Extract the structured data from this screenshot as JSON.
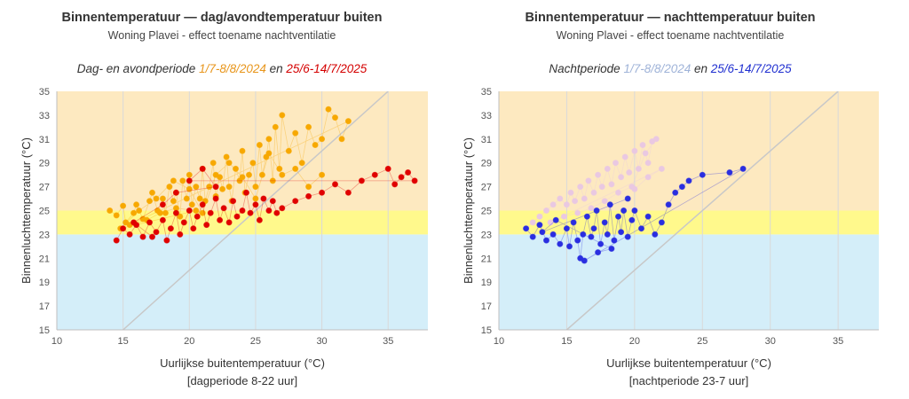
{
  "chart_data": [
    {
      "type": "scatter",
      "title": "Binnentemperatuur — dag/avondtemperatuur buiten",
      "subtitle": "Woning Plavei - effect toename nachtventilatie",
      "period_label": {
        "prefix": "Dag- en avondperiode ",
        "first": "1/7-8/8/2024",
        "joiner": " en ",
        "second": "25/6-14/7/2025"
      },
      "xlabel": "Uurlijkse buitentemperatuur (°C)",
      "xlabel2": "[dagperiode 8-22 uur]",
      "ylabel": "Binnenluchttemperatuur (°C)",
      "xlim": [
        10,
        38
      ],
      "ylim": [
        15,
        35
      ],
      "xticks": [
        "10",
        "15",
        "20",
        "25",
        "30",
        "35"
      ],
      "yticks": [
        "15",
        "17",
        "19",
        "21",
        "23",
        "25",
        "27",
        "29",
        "31",
        "33",
        "35"
      ],
      "bands": [
        {
          "from": 15,
          "to": 23,
          "color": "#d4eef9"
        },
        {
          "from": 23,
          "to": 25,
          "color": "#fff98c"
        },
        {
          "from": 25,
          "to": 35,
          "color": "#fde9c0"
        }
      ],
      "reference_line": {
        "from": [
          15,
          15
        ],
        "to": [
          35,
          35
        ]
      },
      "series": [
        {
          "color": "#f7a800",
          "connected": true,
          "points": [
            [
              14,
              25.0
            ],
            [
              14.5,
              24.6
            ],
            [
              15,
              25.4
            ],
            [
              15.2,
              24.0
            ],
            [
              15.8,
              24.8
            ],
            [
              16,
              25.5
            ],
            [
              16.5,
              24.3
            ],
            [
              17,
              25.8
            ],
            [
              17.2,
              26.5
            ],
            [
              17.6,
              25.0
            ],
            [
              18,
              26.0
            ],
            [
              18.2,
              24.8
            ],
            [
              18.5,
              27.0
            ],
            [
              18.8,
              25.8
            ],
            [
              19,
              26.5
            ],
            [
              19.3,
              24.5
            ],
            [
              19.5,
              27.5
            ],
            [
              19.8,
              26.0
            ],
            [
              20,
              28.0
            ],
            [
              20.2,
              25.5
            ],
            [
              20.5,
              27.0
            ],
            [
              20.8,
              26.0
            ],
            [
              21,
              28.5
            ],
            [
              21.2,
              25.8
            ],
            [
              21.5,
              27.0
            ],
            [
              21.8,
              29.0
            ],
            [
              22,
              26.2
            ],
            [
              22.3,
              27.8
            ],
            [
              22.5,
              26.8
            ],
            [
              22.8,
              29.5
            ],
            [
              23,
              27.0
            ],
            [
              23.2,
              25.8
            ],
            [
              23.5,
              28.5
            ],
            [
              23.8,
              27.5
            ],
            [
              24,
              30.0
            ],
            [
              24.2,
              26.5
            ],
            [
              24.5,
              28.0
            ],
            [
              24.8,
              29.0
            ],
            [
              25,
              27.0
            ],
            [
              25.3,
              30.5
            ],
            [
              25.5,
              28.0
            ],
            [
              25.8,
              29.5
            ],
            [
              26,
              31.0
            ],
            [
              26.3,
              27.5
            ],
            [
              26.5,
              32.0
            ],
            [
              26.8,
              28.5
            ],
            [
              27,
              33.0
            ],
            [
              27.5,
              30.0
            ],
            [
              28,
              31.5
            ],
            [
              28.5,
              29.0
            ],
            [
              29,
              32.0
            ],
            [
              29.5,
              30.5
            ],
            [
              30,
              31.0
            ],
            [
              30.5,
              33.5
            ],
            [
              31,
              32.8
            ],
            [
              31.5,
              31.0
            ],
            [
              32,
              32.5
            ],
            [
              15.5,
              23.8
            ],
            [
              16.8,
              24.2
            ],
            [
              17.8,
              24.8
            ],
            [
              19,
              25.2
            ],
            [
              20.5,
              25.0
            ],
            [
              14.8,
              23.5
            ],
            [
              16.2,
              25.0
            ],
            [
              17.5,
              26.0
            ],
            [
              18.8,
              27.5
            ],
            [
              20,
              26.8
            ],
            [
              21,
              24.8
            ],
            [
              22,
              28.0
            ],
            [
              23,
              29.0
            ],
            [
              24,
              27.8
            ],
            [
              25,
              26.0
            ],
            [
              26,
              29.8
            ],
            [
              27,
              28.0
            ],
            [
              28,
              28.5
            ],
            [
              29,
              27.0
            ],
            [
              30,
              28.0
            ]
          ]
        },
        {
          "color": "#e00000",
          "connected": true,
          "points": [
            [
              14.5,
              22.5
            ],
            [
              15,
              23.5
            ],
            [
              15.5,
              23.0
            ],
            [
              16,
              23.8
            ],
            [
              16.5,
              22.8
            ],
            [
              17,
              24.0
            ],
            [
              17.5,
              23.2
            ],
            [
              18,
              24.2
            ],
            [
              18.3,
              22.5
            ],
            [
              18.6,
              23.5
            ],
            [
              19,
              24.8
            ],
            [
              19.3,
              23.0
            ],
            [
              19.6,
              24.0
            ],
            [
              20,
              25.0
            ],
            [
              20.3,
              23.5
            ],
            [
              20.6,
              24.5
            ],
            [
              21,
              25.5
            ],
            [
              21.3,
              23.8
            ],
            [
              21.6,
              24.8
            ],
            [
              22,
              26.0
            ],
            [
              22.3,
              24.2
            ],
            [
              22.6,
              25.2
            ],
            [
              23,
              24.0
            ],
            [
              23.3,
              25.8
            ],
            [
              23.6,
              24.5
            ],
            [
              24,
              25.0
            ],
            [
              24.3,
              26.5
            ],
            [
              24.6,
              24.8
            ],
            [
              25,
              25.5
            ],
            [
              25.3,
              24.2
            ],
            [
              25.6,
              26.0
            ],
            [
              26,
              25.0
            ],
            [
              26.3,
              25.8
            ],
            [
              26.6,
              24.8
            ],
            [
              27,
              25.2
            ],
            [
              28,
              25.8
            ],
            [
              29,
              26.2
            ],
            [
              30,
              26.5
            ],
            [
              31,
              27.2
            ],
            [
              32,
              26.5
            ],
            [
              33,
              27.5
            ],
            [
              34,
              28.0
            ],
            [
              35,
              28.5
            ],
            [
              35.5,
              27.2
            ],
            [
              36,
              27.8
            ],
            [
              36.5,
              28.2
            ],
            [
              37,
              27.5
            ],
            [
              20,
              27.5
            ],
            [
              21,
              28.5
            ],
            [
              22,
              27.0
            ],
            [
              19,
              26.5
            ],
            [
              18,
              25.5
            ],
            [
              15.8,
              24.0
            ],
            [
              17.2,
              22.8
            ]
          ]
        }
      ]
    },
    {
      "type": "scatter",
      "title": "Binnentemperatuur — nachttemperatuur buiten",
      "subtitle": "Woning Plavei - effect toename nachtventilatie",
      "period_label": {
        "prefix": "Nachtperiode ",
        "first": "1/7-8/8/2024",
        "joiner": " en ",
        "second": "25/6-14/7/2025"
      },
      "xlabel": "Uurlijkse buitentemperatuur (°C)",
      "xlabel2": "[nachtperiode 23-7 uur]",
      "ylabel": "Binnenluchttemperatuur (°C)",
      "xlim": [
        10,
        38
      ],
      "ylim": [
        15,
        35
      ],
      "xticks": [
        "10",
        "15",
        "20",
        "25",
        "30",
        "35"
      ],
      "yticks": [
        "15",
        "17",
        "19",
        "21",
        "23",
        "25",
        "27",
        "29",
        "31",
        "33",
        "35"
      ],
      "bands": [
        {
          "from": 15,
          "to": 23,
          "color": "#d4eef9"
        },
        {
          "from": 23,
          "to": 25,
          "color": "#fff98c"
        },
        {
          "from": 25,
          "to": 35,
          "color": "#fde9c0"
        }
      ],
      "reference_line": {
        "from": [
          15,
          15
        ],
        "to": [
          35,
          35
        ]
      },
      "series": [
        {
          "color": "#e9c8e2",
          "connected": true,
          "points": [
            [
              12,
              23.5
            ],
            [
              12.5,
              24.0
            ],
            [
              13,
              24.5
            ],
            [
              13.5,
              25.0
            ],
            [
              14,
              25.5
            ],
            [
              14.5,
              26.0
            ],
            [
              15,
              25.5
            ],
            [
              15.3,
              26.5
            ],
            [
              15.6,
              25.8
            ],
            [
              16,
              27.0
            ],
            [
              16.3,
              26.0
            ],
            [
              16.6,
              27.5
            ],
            [
              17,
              26.5
            ],
            [
              17.3,
              28.0
            ],
            [
              17.6,
              27.0
            ],
            [
              18,
              28.5
            ],
            [
              18.3,
              27.2
            ],
            [
              18.6,
              29.0
            ],
            [
              19,
              27.8
            ],
            [
              19.3,
              29.5
            ],
            [
              19.6,
              28.2
            ],
            [
              20,
              30.0
            ],
            [
              20.3,
              28.5
            ],
            [
              20.6,
              30.5
            ],
            [
              21,
              29.0
            ],
            [
              21.3,
              30.8
            ],
            [
              21.6,
              31.0
            ],
            [
              20.8,
              29.8
            ],
            [
              19.8,
              27.0
            ],
            [
              18.8,
              26.5
            ],
            [
              17.8,
              25.8
            ],
            [
              16.8,
              25.2
            ],
            [
              15.8,
              24.8
            ],
            [
              14.8,
              24.5
            ],
            [
              13.8,
              24.0
            ],
            [
              22,
              28.5
            ],
            [
              21,
              27.8
            ],
            [
              20,
              26.8
            ]
          ]
        },
        {
          "color": "#2a2ee0",
          "connected": true,
          "points": [
            [
              12,
              23.5
            ],
            [
              12.5,
              22.8
            ],
            [
              13,
              23.8
            ],
            [
              13.5,
              22.5
            ],
            [
              14,
              23.0
            ],
            [
              14.5,
              22.2
            ],
            [
              15,
              23.5
            ],
            [
              15.2,
              22.0
            ],
            [
              15.5,
              24.0
            ],
            [
              15.8,
              22.5
            ],
            [
              16,
              21.0
            ],
            [
              16.2,
              23.0
            ],
            [
              16.5,
              24.5
            ],
            [
              16.8,
              22.8
            ],
            [
              17,
              23.5
            ],
            [
              17.2,
              25.0
            ],
            [
              17.5,
              22.2
            ],
            [
              17.8,
              24.0
            ],
            [
              18,
              23.0
            ],
            [
              18.2,
              25.5
            ],
            [
              18.5,
              22.5
            ],
            [
              18.8,
              24.5
            ],
            [
              19,
              23.2
            ],
            [
              19.2,
              25.0
            ],
            [
              19.5,
              22.8
            ],
            [
              19.8,
              24.2
            ],
            [
              20,
              25.0
            ],
            [
              20.5,
              23.5
            ],
            [
              21,
              24.5
            ],
            [
              21.5,
              23.0
            ],
            [
              22,
              24.0
            ],
            [
              22.5,
              25.5
            ],
            [
              23,
              26.5
            ],
            [
              23.5,
              27.0
            ],
            [
              24,
              27.5
            ],
            [
              25,
              28.0
            ],
            [
              27,
              28.2
            ],
            [
              28,
              28.5
            ],
            [
              16.3,
              20.8
            ],
            [
              17.3,
              21.5
            ],
            [
              18.3,
              21.8
            ],
            [
              14.2,
              24.2
            ],
            [
              13.2,
              23.2
            ],
            [
              19.5,
              26.0
            ]
          ]
        }
      ]
    }
  ]
}
